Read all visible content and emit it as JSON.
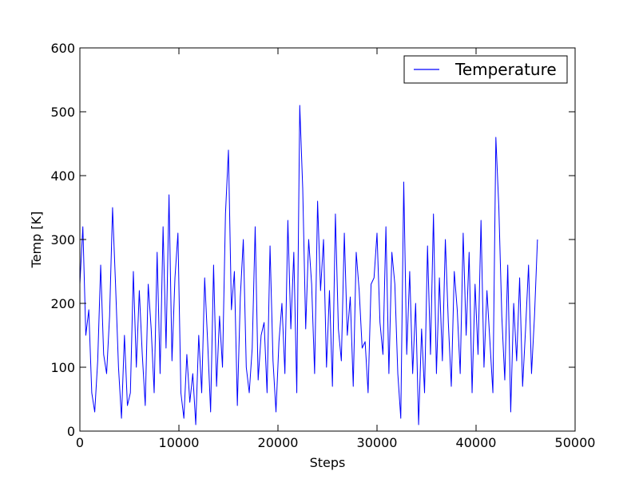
{
  "chart_data": {
    "type": "line",
    "title": "",
    "xlabel": "Steps",
    "ylabel": "Temp [K]",
    "xlim": [
      0,
      50000
    ],
    "ylim": [
      0,
      600
    ],
    "x_ticks": [
      0,
      10000,
      20000,
      30000,
      40000,
      50000
    ],
    "y_ticks": [
      0,
      100,
      200,
      300,
      400,
      500,
      600
    ],
    "grid": false,
    "legend_position": "top-right",
    "series": [
      {
        "name": "Temperature",
        "color": "#0000ff",
        "x": [
          0,
          300,
          600,
          900,
          1200,
          1500,
          1800,
          2100,
          2400,
          2700,
          3000,
          3300,
          3600,
          3900,
          4200,
          4500,
          4800,
          5100,
          5400,
          5700,
          6000,
          6300,
          6600,
          6900,
          7200,
          7500,
          7800,
          8100,
          8400,
          8700,
          9000,
          9300,
          9600,
          9900,
          10200,
          10500,
          10800,
          11100,
          11400,
          11700,
          12000,
          12300,
          12600,
          12900,
          13200,
          13500,
          13800,
          14100,
          14400,
          14700,
          15000,
          15300,
          15600,
          15900,
          16200,
          16500,
          16800,
          17100,
          17400,
          17700,
          18000,
          18300,
          18600,
          18900,
          19200,
          19500,
          19800,
          20100,
          20400,
          20700,
          21000,
          21300,
          21600,
          21900,
          22200,
          22500,
          22800,
          23100,
          23400,
          23700,
          24000,
          24300,
          24600,
          24900,
          25200,
          25500,
          25800,
          26100,
          26400,
          26700,
          27000,
          27300,
          27600,
          27900,
          28200,
          28500,
          28800,
          29100,
          29400,
          29700,
          30000,
          30300,
          30600,
          30900,
          31200,
          31500,
          31800,
          32100,
          32400,
          32700,
          33000,
          33300,
          33600,
          33900,
          34200,
          34500,
          34800,
          35100,
          35400,
          35700,
          36000,
          36300,
          36600,
          36900,
          37200,
          37500,
          37800,
          38100,
          38400,
          38700,
          39000,
          39300,
          39600,
          39900,
          40200,
          40500,
          40800,
          41100,
          41400,
          41700,
          42000,
          42300,
          42600,
          42900,
          43200,
          43500,
          43800,
          44100,
          44400,
          44700,
          45000,
          45300,
          45600,
          45900,
          46200
        ],
        "y": [
          230,
          320,
          150,
          190,
          60,
          30,
          110,
          260,
          120,
          90,
          180,
          350,
          230,
          100,
          20,
          150,
          40,
          60,
          250,
          100,
          220,
          120,
          40,
          230,
          160,
          60,
          280,
          90,
          320,
          130,
          370,
          110,
          240,
          310,
          60,
          20,
          120,
          45,
          90,
          10,
          150,
          60,
          240,
          140,
          30,
          260,
          70,
          180,
          100,
          340,
          440,
          190,
          250,
          40,
          210,
          300,
          100,
          60,
          130,
          320,
          80,
          150,
          170,
          60,
          290,
          110,
          30,
          140,
          200,
          90,
          330,
          160,
          280,
          60,
          510,
          380,
          160,
          300,
          230,
          90,
          360,
          220,
          300,
          100,
          220,
          70,
          340,
          160,
          110,
          310,
          150,
          210,
          70,
          280,
          220,
          130,
          140,
          60,
          230,
          240,
          310,
          170,
          120,
          320,
          90,
          280,
          230,
          90,
          20,
          390,
          120,
          250,
          90,
          200,
          10,
          160,
          60,
          290,
          120,
          340,
          90,
          240,
          110,
          300,
          170,
          70,
          250,
          190,
          90,
          310,
          150,
          280,
          60,
          230,
          120,
          330,
          100,
          220,
          140,
          60,
          460,
          350,
          180,
          80,
          260,
          30,
          200,
          110,
          240,
          70,
          160,
          260,
          90,
          180,
          300
        ]
      }
    ]
  }
}
